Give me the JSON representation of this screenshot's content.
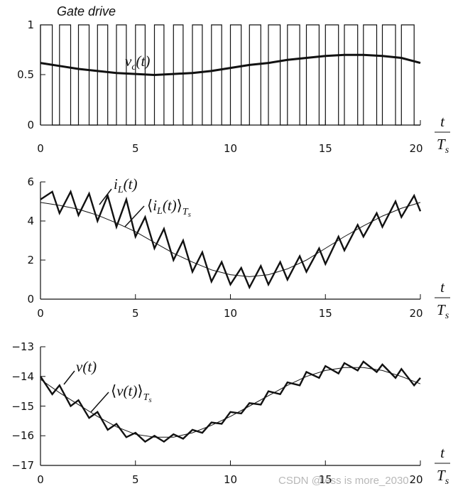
{
  "colors": {
    "ink": "#111111",
    "background": "#ffffff",
    "watermark": "#b8b8b8"
  },
  "watermark": "CSDN @less is more_2030",
  "axis_fraction": {
    "numerator": "t",
    "denominator": "T",
    "denominator_subscript": "s"
  },
  "chart_data": [
    {
      "type": "line",
      "title": "Gate drive",
      "xlim": [
        0,
        20
      ],
      "ylim": [
        0,
        1
      ],
      "x_ticks": [
        "0",
        "5",
        "10",
        "15",
        "20"
      ],
      "y_ticks": [
        "0",
        "0.5",
        "1"
      ],
      "grid": false,
      "series": [
        {
          "name": "Gate drive",
          "kind": "pwm",
          "period": 1,
          "duty": [
            0.62,
            0.59,
            0.56,
            0.54,
            0.52,
            0.51,
            0.5,
            0.51,
            0.52,
            0.54,
            0.57,
            0.6,
            0.62,
            0.65,
            0.67,
            0.69,
            0.7,
            0.7,
            0.69,
            0.67
          ]
        },
        {
          "name": "v_c(t)",
          "kind": "smooth",
          "x": [
            0,
            1,
            2,
            3,
            4,
            5,
            6,
            7,
            8,
            9,
            10,
            11,
            12,
            13,
            14,
            15,
            16,
            17,
            18,
            19,
            20
          ],
          "values": [
            0.62,
            0.59,
            0.56,
            0.54,
            0.52,
            0.51,
            0.5,
            0.51,
            0.52,
            0.54,
            0.57,
            0.6,
            0.62,
            0.65,
            0.67,
            0.69,
            0.7,
            0.7,
            0.69,
            0.67,
            0.62
          ]
        }
      ],
      "labels": [
        {
          "series": "v_c(t)",
          "base": "v",
          "sub": "c",
          "arg": "(t)"
        }
      ]
    },
    {
      "type": "line",
      "xlim": [
        0,
        20
      ],
      "ylim": [
        0,
        6
      ],
      "x_ticks": [
        "0",
        "5",
        "10",
        "15",
        "20"
      ],
      "y_ticks": [
        "0",
        "2",
        "4",
        "6"
      ],
      "grid": false,
      "series": [
        {
          "name": "i_L(t)",
          "x": [
            0,
            0.0,
            0.62,
            1.0,
            1.59,
            2.0,
            2.56,
            3.0,
            3.54,
            4.0,
            4.52,
            5.0,
            5.51,
            6.0,
            6.5,
            7.0,
            7.51,
            8.0,
            8.52,
            9.0,
            9.54,
            10.0,
            10.57,
            11.0,
            11.6,
            12.0,
            12.62,
            13.0,
            13.65,
            14.0,
            14.67,
            15.0,
            15.69,
            16.0,
            16.7,
            17.0,
            17.7,
            18.0,
            18.69,
            19.0,
            19.67,
            20.0
          ],
          "values": [
            5.1,
            5.1,
            5.5,
            4.4,
            5.5,
            4.3,
            5.4,
            4.0,
            5.3,
            3.7,
            5.1,
            3.2,
            4.2,
            2.6,
            3.6,
            2.0,
            3.0,
            1.4,
            2.4,
            0.9,
            1.9,
            0.75,
            1.6,
            0.6,
            1.7,
            0.75,
            1.9,
            1.0,
            2.2,
            1.4,
            2.6,
            1.8,
            3.2,
            2.5,
            3.8,
            3.2,
            4.4,
            3.7,
            5.0,
            4.2,
            5.3,
            4.5
          ]
        },
        {
          "name": "⟨i_L(t)⟩_Ts",
          "x": [
            0,
            1,
            2,
            3,
            4,
            5,
            6,
            7,
            8,
            9,
            10,
            11,
            12,
            13,
            14,
            15,
            16,
            17,
            18,
            19,
            20
          ],
          "values": [
            4.95,
            4.8,
            4.6,
            4.3,
            3.9,
            3.45,
            2.9,
            2.35,
            1.9,
            1.5,
            1.25,
            1.15,
            1.25,
            1.55,
            2.0,
            2.6,
            3.2,
            3.75,
            4.25,
            4.65,
            4.95
          ]
        }
      ],
      "labels": [
        {
          "series": "i_L(t)",
          "base": "i",
          "sub": "L",
          "arg": "(t)"
        },
        {
          "series": "⟨i_L(t)⟩_Ts",
          "base": "i",
          "sub": "L",
          "arg": "(t)",
          "bracket_open": "⟨",
          "bracket_close": "⟩",
          "outer_sub": "T",
          "outer_sub_sub": "s"
        }
      ]
    },
    {
      "type": "line",
      "xlim": [
        0,
        20
      ],
      "ylim": [
        -17,
        -13
      ],
      "x_ticks": [
        "0",
        "5",
        "10",
        "15",
        "20"
      ],
      "y_ticks": [
        "−13",
        "−14",
        "−15",
        "−16",
        "−17"
      ],
      "y_tick_values": [
        -13,
        -14,
        -15,
        -16,
        -17
      ],
      "grid": false,
      "series": [
        {
          "name": "v(t)",
          "x": [
            0,
            0.0,
            0.62,
            1.0,
            1.59,
            2.0,
            2.56,
            3.0,
            3.54,
            4.0,
            4.52,
            5.0,
            5.51,
            6.0,
            6.5,
            7.0,
            7.51,
            8.0,
            8.52,
            9.0,
            9.54,
            10.0,
            10.57,
            11.0,
            11.6,
            12.0,
            12.62,
            13.0,
            13.65,
            14.0,
            14.67,
            15.0,
            15.69,
            16.0,
            16.7,
            17.0,
            17.7,
            18.0,
            18.69,
            19.0,
            19.67,
            20.0
          ],
          "values": [
            -14.0,
            -14.0,
            -14.6,
            -14.3,
            -15.0,
            -14.8,
            -15.4,
            -15.2,
            -15.8,
            -15.6,
            -16.05,
            -15.9,
            -16.2,
            -16.0,
            -16.2,
            -15.95,
            -16.1,
            -15.8,
            -15.9,
            -15.55,
            -15.6,
            -15.2,
            -15.25,
            -14.9,
            -14.95,
            -14.5,
            -14.6,
            -14.2,
            -14.3,
            -13.85,
            -14.05,
            -13.65,
            -13.9,
            -13.55,
            -13.8,
            -13.5,
            -13.85,
            -13.6,
            -14.05,
            -13.75,
            -14.3,
            -14.05
          ]
        },
        {
          "name": "⟨v(t)⟩_Ts",
          "x": [
            0,
            1,
            2,
            3,
            4,
            5,
            6,
            7,
            8,
            9,
            10,
            11,
            12,
            13,
            14,
            15,
            16,
            17,
            18,
            19,
            20
          ],
          "values": [
            -14.1,
            -14.55,
            -14.95,
            -15.35,
            -15.7,
            -15.95,
            -16.05,
            -16.05,
            -15.9,
            -15.65,
            -15.35,
            -15.0,
            -14.65,
            -14.3,
            -14.0,
            -13.8,
            -13.7,
            -13.7,
            -13.8,
            -14.0,
            -14.25
          ]
        }
      ],
      "labels": [
        {
          "series": "v(t)",
          "base": "v",
          "arg": "(t)"
        },
        {
          "series": "⟨v(t)⟩_Ts",
          "base": "v",
          "arg": "(t)",
          "bracket_open": "⟨",
          "bracket_close": "⟩",
          "outer_sub": "T",
          "outer_sub_sub": "s"
        }
      ]
    }
  ]
}
